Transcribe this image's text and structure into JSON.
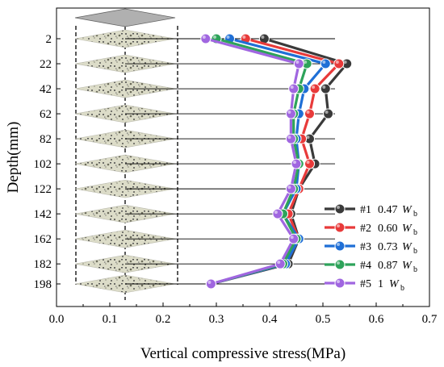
{
  "chart_data": {
    "type": "line",
    "xlabel": "Vertical compressive stress(MPa)",
    "ylabel": "Depth(mm)",
    "xlim": [
      0.0,
      0.7
    ],
    "xticks": [
      "0.0",
      "0.1",
      "0.2",
      "0.3",
      "0.4",
      "0.5",
      "0.6",
      "0.7"
    ],
    "y": [
      2,
      22,
      42,
      62,
      82,
      102,
      122,
      142,
      162,
      182,
      198
    ],
    "yticks": [
      "2",
      "22",
      "42",
      "62",
      "82",
      "102",
      "122",
      "142",
      "162",
      "182",
      "198"
    ],
    "y_inverted": true,
    "grid": false,
    "legend_position": "bottom-right",
    "background_illustration": "layered asphalt specimen slices with dashed outline",
    "series": [
      {
        "name": "#1",
        "value": "0.47",
        "symbol": "W",
        "subscript": "b",
        "color": "#3a3a3a",
        "x": [
          0.39,
          0.545,
          0.505,
          0.51,
          0.475,
          0.485,
          0.455,
          0.44,
          0.455,
          0.435,
          0.29
        ]
      },
      {
        "name": "#2",
        "value": "0.60",
        "symbol": "W",
        "subscript": "b",
        "color": "#e83a3a",
        "x": [
          0.355,
          0.53,
          0.485,
          0.475,
          0.46,
          0.475,
          0.455,
          0.435,
          0.455,
          0.43,
          0.29
        ]
      },
      {
        "name": "#3",
        "value": "0.73",
        "symbol": "W",
        "subscript": "b",
        "color": "#1f6fd6",
        "x": [
          0.325,
          0.505,
          0.465,
          0.455,
          0.45,
          0.455,
          0.45,
          0.425,
          0.455,
          0.43,
          0.29
        ]
      },
      {
        "name": "#4",
        "value": "0.87",
        "symbol": "W",
        "subscript": "b",
        "color": "#2ea35a",
        "x": [
          0.3,
          0.47,
          0.455,
          0.445,
          0.445,
          0.455,
          0.445,
          0.425,
          0.45,
          0.425,
          0.29
        ]
      },
      {
        "name": "#5",
        "value": "1",
        "symbol": "W",
        "subscript": "b",
        "color": "#a066e0",
        "x": [
          0.28,
          0.455,
          0.445,
          0.44,
          0.44,
          0.45,
          0.44,
          0.415,
          0.445,
          0.42,
          0.29
        ]
      }
    ]
  }
}
